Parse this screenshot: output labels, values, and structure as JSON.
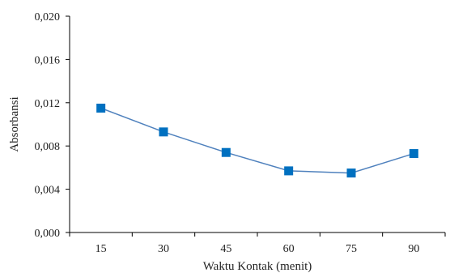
{
  "chart_data": {
    "type": "line",
    "title": "",
    "xlabel": "Waktu Kontak (menit)",
    "ylabel": "Absorbansi",
    "x": [
      15,
      30,
      45,
      60,
      75,
      90
    ],
    "x_tick_labels": [
      "15",
      "30",
      "45",
      "60",
      "75",
      "90"
    ],
    "series": [
      {
        "values": [
          0.0115,
          0.0093,
          0.0074,
          0.0057,
          0.0055,
          0.0073
        ],
        "color": "#4f81bd",
        "marker_color": "#0070c0",
        "marker": "square"
      }
    ],
    "y_ticks": [
      0,
      0.004,
      0.008,
      0.012,
      0.016,
      0.02
    ],
    "y_tick_labels": [
      "0,000",
      "0,004",
      "0,008",
      "0,012",
      "0,016",
      "0,020"
    ],
    "ylim": [
      0,
      0.02
    ],
    "xlim": [
      7.5,
      97.5
    ],
    "grid": false,
    "legend": "none"
  }
}
